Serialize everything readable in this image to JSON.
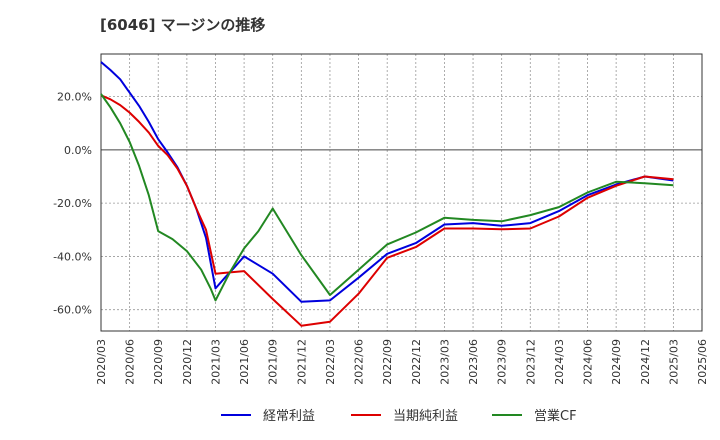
{
  "chart_data": {
    "type": "line",
    "title": "[6046]  マージンの推移",
    "xlabel": "",
    "ylabel": "",
    "ylim": [
      -68,
      36
    ],
    "yticks": [
      20,
      0,
      -20,
      -40,
      -60
    ],
    "ytick_labels": [
      "20.0%",
      "0.0%",
      "-20.0%",
      "-40.0%",
      "-60.0%"
    ],
    "xtick_labels": [
      "2020/03",
      "2020/06",
      "2020/09",
      "2020/12",
      "2021/03",
      "2021/06",
      "2021/09",
      "2021/12",
      "2022/03",
      "2022/06",
      "2022/09",
      "2022/12",
      "2023/03",
      "2023/06",
      "2023/09",
      "2023/12",
      "2024/03",
      "2024/06",
      "2024/09",
      "2024/12",
      "2025/03",
      "2025/06"
    ],
    "x_range_quarters": [
      0,
      21
    ],
    "grid": true,
    "legend_position": "bottom",
    "series": [
      {
        "name": "経常利益",
        "color": "#0000dd",
        "points": [
          [
            0,
            33
          ],
          [
            0.33,
            30
          ],
          [
            0.67,
            26.5
          ],
          [
            1,
            21.5
          ],
          [
            1.33,
            16.5
          ],
          [
            1.67,
            10.5
          ],
          [
            2,
            4
          ],
          [
            2.33,
            -1
          ],
          [
            2.67,
            -6.5
          ],
          [
            3,
            -13.5
          ],
          [
            3.33,
            -22
          ],
          [
            3.67,
            -33
          ],
          [
            4,
            -52
          ],
          [
            4.33,
            -48
          ],
          [
            4.67,
            -44
          ],
          [
            5,
            -40
          ],
          [
            6,
            -46.5
          ],
          [
            7,
            -57
          ],
          [
            8,
            -56.5
          ],
          [
            9,
            -48
          ],
          [
            10,
            -39
          ],
          [
            11,
            -35
          ],
          [
            12,
            -28
          ],
          [
            13,
            -27.5
          ],
          [
            14,
            -28.5
          ],
          [
            15,
            -27.5
          ],
          [
            16,
            -23
          ],
          [
            17,
            -17
          ],
          [
            18,
            -13
          ],
          [
            19,
            -10
          ],
          [
            20,
            -11.5
          ]
        ]
      },
      {
        "name": "当期純利益",
        "color": "#dd0000",
        "points": [
          [
            0,
            20.5
          ],
          [
            0.33,
            19
          ],
          [
            0.67,
            16.8
          ],
          [
            1,
            14
          ],
          [
            1.33,
            10.5
          ],
          [
            1.67,
            6.5
          ],
          [
            2,
            1.5
          ],
          [
            2.33,
            -2
          ],
          [
            2.67,
            -7
          ],
          [
            3,
            -13.5
          ],
          [
            3.33,
            -22
          ],
          [
            3.67,
            -30
          ],
          [
            4,
            -46.5
          ],
          [
            4.5,
            -46
          ],
          [
            5,
            -45.5
          ],
          [
            6,
            -56
          ],
          [
            7,
            -66
          ],
          [
            8,
            -64.5
          ],
          [
            9,
            -54
          ],
          [
            10,
            -40.5
          ],
          [
            11,
            -36.5
          ],
          [
            12,
            -29.5
          ],
          [
            13,
            -29.5
          ],
          [
            14,
            -29.8
          ],
          [
            15,
            -29.5
          ],
          [
            16,
            -25
          ],
          [
            17,
            -18
          ],
          [
            18,
            -13.5
          ],
          [
            19,
            -10
          ],
          [
            20,
            -11
          ]
        ]
      },
      {
        "name": "営業CF",
        "color": "#228822",
        "points": [
          [
            0,
            21
          ],
          [
            0.33,
            16
          ],
          [
            0.67,
            10
          ],
          [
            1,
            3
          ],
          [
            1.33,
            -6
          ],
          [
            1.67,
            -17
          ],
          [
            2,
            -30.5
          ],
          [
            2.5,
            -33.5
          ],
          [
            3,
            -38
          ],
          [
            3.5,
            -45
          ],
          [
            3.83,
            -52
          ],
          [
            4,
            -56.5
          ],
          [
            4.5,
            -46
          ],
          [
            5,
            -37
          ],
          [
            5.5,
            -30.5
          ],
          [
            6,
            -22
          ],
          [
            7,
            -39.5
          ],
          [
            8,
            -54.5
          ],
          [
            9,
            -45
          ],
          [
            10,
            -35.5
          ],
          [
            11,
            -31
          ],
          [
            12,
            -25.5
          ],
          [
            13,
            -26.3
          ],
          [
            14,
            -26.8
          ],
          [
            15,
            -24.5
          ],
          [
            16,
            -21.5
          ],
          [
            17,
            -16
          ],
          [
            18,
            -12
          ],
          [
            19,
            -12.5
          ],
          [
            20,
            -13.3
          ]
        ]
      }
    ]
  }
}
